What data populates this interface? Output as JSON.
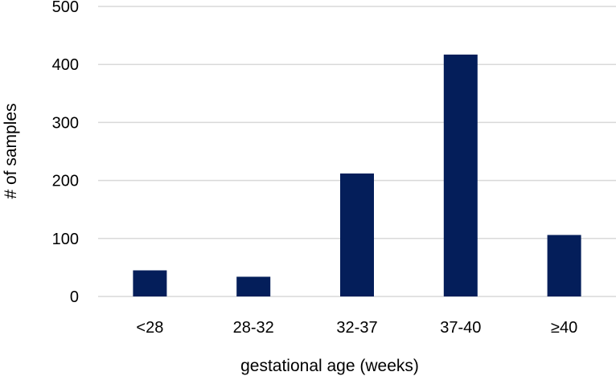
{
  "chart_data": {
    "type": "bar",
    "categories": [
      "<28",
      "28-32",
      "32-37",
      "37-40",
      "≥40"
    ],
    "values": [
      45,
      34,
      212,
      417,
      106
    ],
    "xlabel": "gestational age (weeks)",
    "ylabel": "# of samples",
    "ylim": [
      0,
      500
    ],
    "yticks": [
      "0",
      "100",
      "200",
      "300",
      "400",
      "500"
    ],
    "grid": true,
    "legend": "none",
    "bar_color": "#041e5a",
    "grid_color": "#d9d9d9"
  }
}
